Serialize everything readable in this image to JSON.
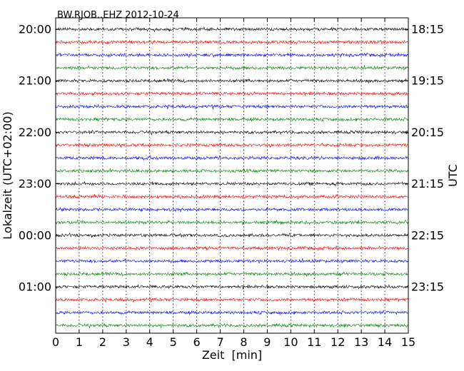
{
  "chart_data": {
    "type": "line",
    "title": "BW.RJOB..EHZ 2012-10-24",
    "xlabel": "Zeit  [min]",
    "ylabel_left": "Lokalzeit (UTC+02:00)",
    "ylabel_right": "UTC",
    "xlim": [
      0,
      15
    ],
    "x_ticks": [
      "0",
      "1",
      "2",
      "3",
      "4",
      "5",
      "6",
      "7",
      "8",
      "9",
      "10",
      "11",
      "12",
      "13",
      "14",
      "15"
    ],
    "left_tick_labels": [
      "20:00",
      "21:00",
      "22:00",
      "23:00",
      "00:00",
      "01:00"
    ],
    "right_tick_labels": [
      "18:15",
      "19:15",
      "20:15",
      "21:15",
      "22:15",
      "23:15"
    ],
    "trace_count": 24,
    "trace_minutes": 15,
    "colors": [
      "#000000",
      "#ff0000",
      "#0000ff",
      "#008000"
    ],
    "vertical_grid": "dotted"
  }
}
